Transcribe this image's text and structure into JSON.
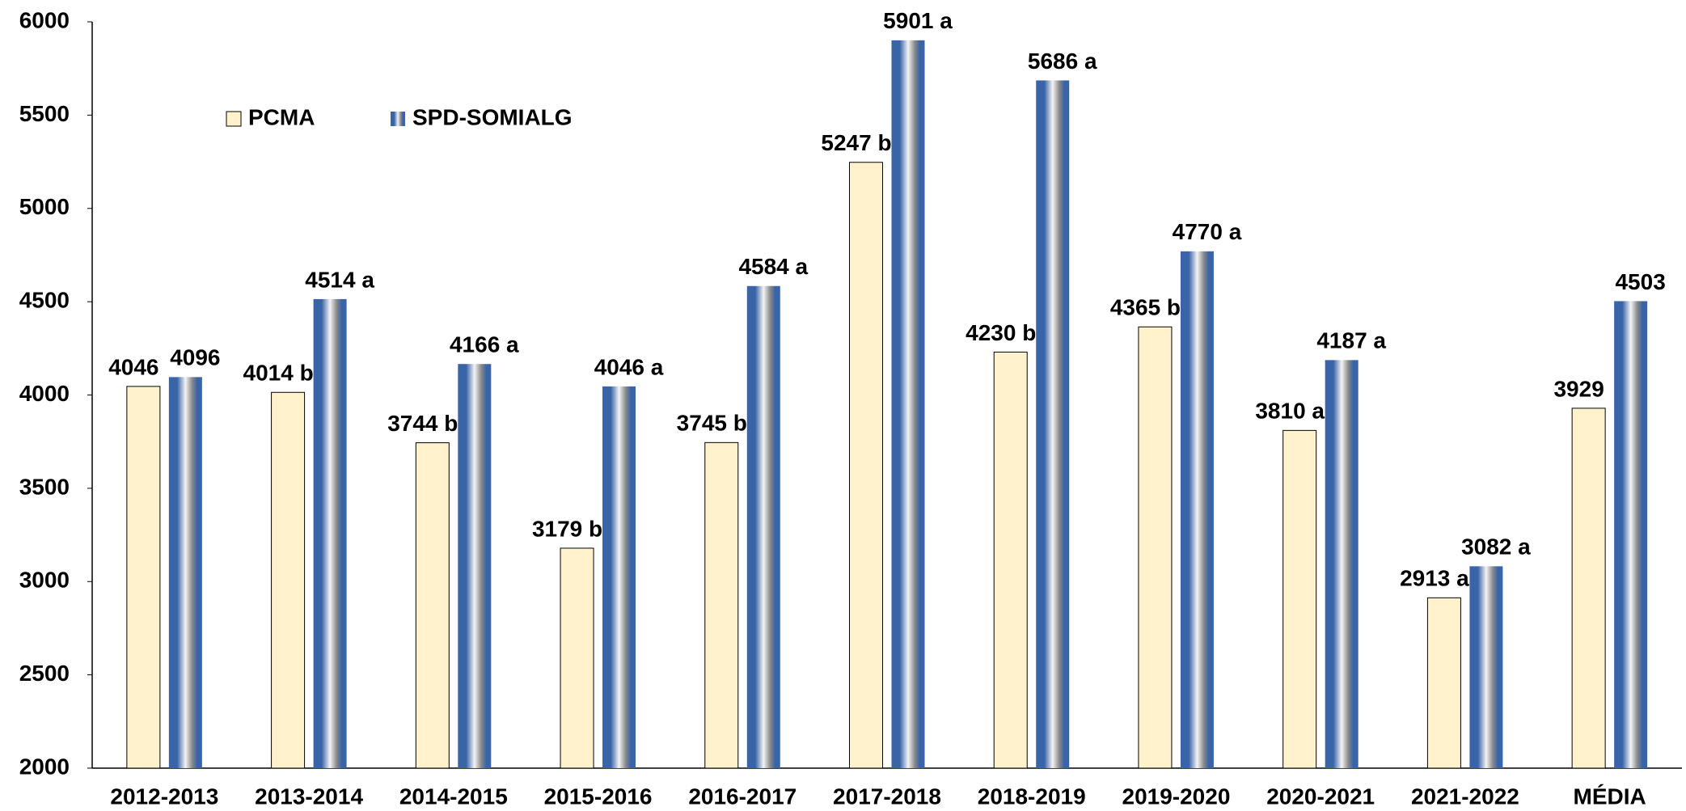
{
  "chart_data": {
    "type": "bar",
    "categories": [
      "2012-2013",
      "2013-2014",
      "2014-2015",
      "2015-2016",
      "2016-2017",
      "2017-2018",
      "2018-2019",
      "2019-2020",
      "2020-2021",
      "2021-2022",
      "MÉDIA"
    ],
    "series": [
      {
        "name": "PCMA",
        "color": "#fff2cc",
        "values": [
          4046,
          4014,
          3744,
          3179,
          3745,
          5247,
          4230,
          4365,
          3810,
          2913,
          3929
        ],
        "value_labels": [
          "4046",
          "4014 b",
          "3744 b",
          "3179 b",
          "3745 b",
          "5247 b",
          "4230 b",
          "4365 b",
          "3810 a",
          "2913 a",
          "3929"
        ]
      },
      {
        "name": "SPD-SOMIALG",
        "color": "#3a64a8",
        "values": [
          4096,
          4514,
          4166,
          4046,
          4584,
          5901,
          5686,
          4770,
          4187,
          3082,
          4503
        ],
        "value_labels": [
          "4096",
          "4514 a",
          "4166 a",
          "4046 a",
          "4584 a",
          "5901 a",
          "5686 a",
          "4770 a",
          "4187 a",
          "3082 a",
          "4503"
        ]
      }
    ],
    "ylim": [
      2000,
      6000
    ],
    "yticks": [
      2000,
      2500,
      3000,
      3500,
      4000,
      4500,
      5000,
      5500,
      6000
    ],
    "grid": false,
    "legend": "top-left"
  }
}
